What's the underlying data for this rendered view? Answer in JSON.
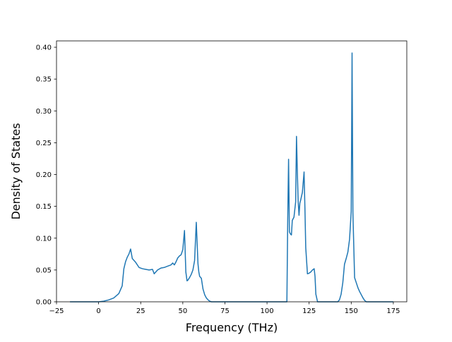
{
  "chart_data": {
    "type": "line",
    "title": "",
    "xlabel": "Frequency (THz)",
    "ylabel": "Density of States",
    "xlim": [
      -25,
      183
    ],
    "ylim": [
      0,
      0.41
    ],
    "xticks": [
      -25,
      0,
      25,
      50,
      75,
      100,
      125,
      150,
      175
    ],
    "xtick_labels": [
      "−25",
      "0",
      "25",
      "50",
      "75",
      "100",
      "125",
      "150",
      "175"
    ],
    "yticks": [
      0,
      0.05,
      0.1,
      0.15,
      0.2,
      0.25,
      0.3,
      0.35,
      0.4
    ],
    "ytick_labels": [
      "0.00",
      "0.05",
      "0.10",
      "0.15",
      "0.20",
      "0.25",
      "0.30",
      "0.35",
      "0.40"
    ],
    "grid": false,
    "legend": "none",
    "line_color": "#1f77b4",
    "series": [
      {
        "x": [
          -17,
          0,
          3,
          6,
          9,
          12,
          14,
          15,
          16,
          17,
          18,
          19,
          20,
          22,
          24,
          26,
          28,
          30,
          32,
          33,
          35,
          37,
          39,
          41,
          42,
          43,
          44,
          45,
          46,
          47,
          48,
          49,
          50,
          51,
          51.8,
          52.5,
          53,
          54,
          55,
          56,
          57,
          58,
          59,
          59.5,
          60,
          61,
          62,
          63,
          64,
          65,
          66,
          67,
          68,
          75,
          100,
          111.8,
          112.3,
          112.8,
          113.3,
          113.8,
          114.5,
          115,
          116,
          117,
          117.5,
          118,
          118.5,
          119,
          119.5,
          120,
          121,
          122,
          122.5,
          123,
          124,
          125,
          126,
          127,
          128,
          128.5,
          129,
          130,
          131,
          132,
          140,
          142,
          143,
          144,
          145,
          146,
          147,
          148,
          149,
          150,
          150.5,
          151,
          152,
          153,
          154,
          155,
          156,
          157,
          158,
          159,
          160,
          165,
          175
        ],
        "y": [
          0,
          0,
          0.001,
          0.003,
          0.006,
          0.013,
          0.025,
          0.052,
          0.063,
          0.07,
          0.075,
          0.083,
          0.068,
          0.062,
          0.054,
          0.052,
          0.051,
          0.05,
          0.051,
          0.044,
          0.05,
          0.053,
          0.054,
          0.056,
          0.057,
          0.058,
          0.061,
          0.058,
          0.063,
          0.069,
          0.072,
          0.074,
          0.082,
          0.112,
          0.047,
          0.033,
          0.034,
          0.038,
          0.043,
          0.05,
          0.065,
          0.125,
          0.06,
          0.047,
          0.04,
          0.037,
          0.02,
          0.011,
          0.006,
          0.003,
          0.001,
          0,
          0,
          0,
          0,
          0,
          0.13,
          0.224,
          0.11,
          0.107,
          0.105,
          0.128,
          0.133,
          0.157,
          0.26,
          0.205,
          0.158,
          0.136,
          0.155,
          0.16,
          0.172,
          0.204,
          0.148,
          0.085,
          0.044,
          0.045,
          0.047,
          0.05,
          0.052,
          0.04,
          0.012,
          0,
          0,
          0,
          0,
          0,
          0.003,
          0.012,
          0.03,
          0.059,
          0.068,
          0.078,
          0.098,
          0.142,
          0.391,
          0.14,
          0.038,
          0.03,
          0.022,
          0.016,
          0.011,
          0.006,
          0.002,
          0,
          0,
          0,
          0
        ]
      }
    ]
  }
}
